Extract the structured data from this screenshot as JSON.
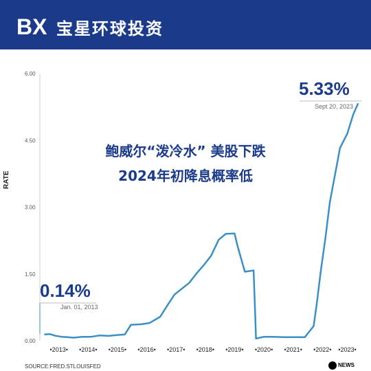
{
  "header": {
    "logo_text": "BX",
    "brand": "宝星环球投资"
  },
  "headline": {
    "line1": "鲍威尔“泼冷水” 美股下跌",
    "line2": "2024年初降息概率低"
  },
  "annotations": {
    "start_value": "0.14%",
    "start_date": "Jan. 01, 2013",
    "end_value": "5.33%",
    "end_date": "Sept 20, 2023"
  },
  "source": "SOURCE:FRED.STLOUISFED",
  "logo_abc": "NEWS",
  "colors": {
    "line": "#3a8fc7",
    "brand": "#1b3b8a"
  },
  "chart_data": {
    "type": "line",
    "ylabel": "RATE",
    "ylim": [
      0,
      6
    ],
    "yticks": [
      "0.00",
      "1.50",
      "3.00",
      "4.50",
      "6.00"
    ],
    "xlim": [
      2012.85,
      2023.83
    ],
    "xticks": [
      {
        "label": "2013",
        "x": 2013.5
      },
      {
        "label": "2014",
        "x": 2014.5
      },
      {
        "label": "2015",
        "x": 2015.5
      },
      {
        "label": "2016",
        "x": 2016.5
      },
      {
        "label": "2017",
        "x": 2017.5
      },
      {
        "label": "2018",
        "x": 2018.5
      },
      {
        "label": "2019",
        "x": 2019.5
      },
      {
        "label": "2020",
        "x": 2020.5
      },
      {
        "label": "2021",
        "x": 2021.5
      },
      {
        "label": "2022",
        "x": 2022.5
      },
      {
        "label": "2023",
        "x": 2023.35
      }
    ],
    "series": [
      {
        "x": [
          2013.0,
          2013.2,
          2013.4,
          2013.6,
          2013.8,
          2014.0,
          2014.3,
          2014.6,
          2014.9,
          2015.2,
          2015.5,
          2015.75,
          2015.96,
          2016.3,
          2016.6,
          2016.96,
          2017.2,
          2017.45,
          2017.95,
          2018.2,
          2018.45,
          2018.7,
          2018.96,
          2019.2,
          2019.5,
          2019.6,
          2019.85,
          2020.15,
          2020.2,
          2020.23,
          2020.5,
          2020.8,
          2021.2,
          2021.6,
          2021.9,
          2022.2,
          2022.3,
          2022.45,
          2022.6,
          2022.75,
          2022.95,
          2023.1,
          2023.35,
          2023.55,
          2023.72
        ],
        "y": [
          0.14,
          0.15,
          0.11,
          0.09,
          0.08,
          0.07,
          0.09,
          0.09,
          0.12,
          0.11,
          0.13,
          0.14,
          0.36,
          0.37,
          0.4,
          0.54,
          0.79,
          1.04,
          1.3,
          1.51,
          1.7,
          1.91,
          2.27,
          2.4,
          2.41,
          2.13,
          1.55,
          1.58,
          0.65,
          0.05,
          0.09,
          0.09,
          0.08,
          0.08,
          0.08,
          0.33,
          0.8,
          1.6,
          2.3,
          3.1,
          3.8,
          4.33,
          4.65,
          5.08,
          5.33
        ]
      }
    ]
  }
}
